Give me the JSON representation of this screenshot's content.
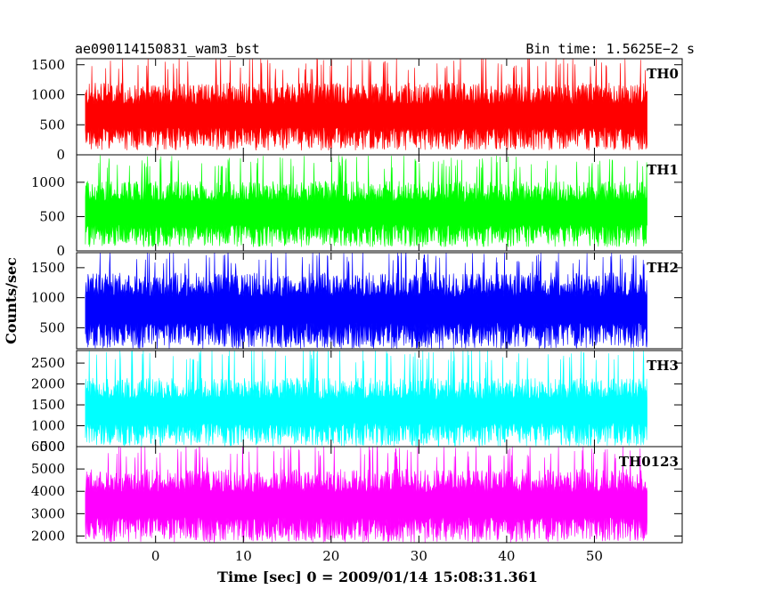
{
  "header": {
    "left_title": "ae090114150831_wam3_bst",
    "right_title": "Bin time: 1.5625E−2 s"
  },
  "chart_data": {
    "type": "line",
    "xlabel": "Time [sec] 0 = 2009/01/14 15:08:31.361",
    "ylabel": "Counts/sec",
    "xlim": [
      -9,
      60
    ],
    "x_range_data": [
      -8,
      56
    ],
    "x_ticks": [
      0,
      10,
      20,
      30,
      40,
      50
    ],
    "x_tick_labels": [
      "0",
      "10",
      "20",
      "30",
      "40",
      "50"
    ],
    "grid": false,
    "series": [
      {
        "name": "TH0",
        "color": "#ff0000",
        "ylim": [
          0,
          1600
        ],
        "y_ticks": [
          0,
          500,
          1000,
          1500
        ],
        "y_tick_labels": [
          "0",
          "500",
          "1000",
          "1500"
        ],
        "mean": 650,
        "min": 100,
        "max": 1600
      },
      {
        "name": "TH1",
        "color": "#00ff00",
        "ylim": [
          0,
          1400
        ],
        "y_ticks": [
          0,
          500,
          1000
        ],
        "y_tick_labels": [
          "0",
          "500",
          "1000"
        ],
        "mean": 550,
        "min": 80,
        "max": 1350
      },
      {
        "name": "TH2",
        "color": "#0000ff",
        "ylim": [
          150,
          1750
        ],
        "y_ticks": [
          500,
          1000,
          1500
        ],
        "y_tick_labels": [
          "500",
          "1000",
          "1500"
        ],
        "mean": 800,
        "min": 180,
        "max": 1750
      },
      {
        "name": "TH3",
        "color": "#00ffff",
        "ylim": [
          500,
          2800
        ],
        "y_ticks": [
          500,
          1000,
          1500,
          2000,
          2500
        ],
        "y_tick_labels": [
          "500",
          "1000",
          "1500",
          "2000",
          "2500"
        ],
        "mean": 1350,
        "min": 550,
        "max": 2800
      },
      {
        "name": "TH0123",
        "color": "#ff00ff",
        "ylim": [
          1700,
          6000
        ],
        "y_ticks": [
          2000,
          3000,
          4000,
          5000,
          6000
        ],
        "y_tick_labels": [
          "2000",
          "3000",
          "4000",
          "5000",
          "6000"
        ],
        "mean": 3400,
        "min": 1800,
        "max": 6000
      }
    ]
  }
}
